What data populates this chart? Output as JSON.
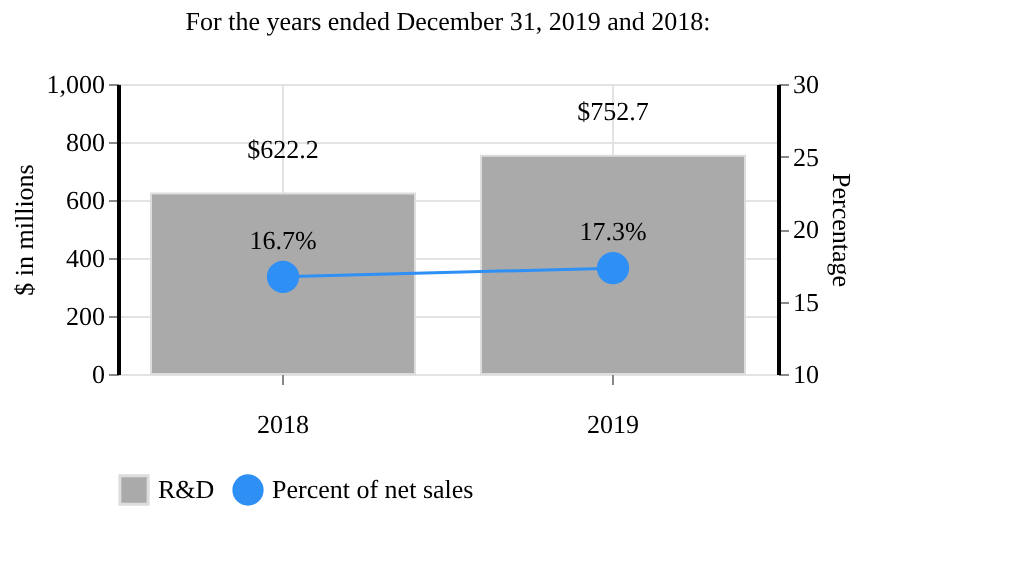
{
  "chart_data": {
    "type": "bar",
    "title": "For the years ended December 31, 2019 and 2018:",
    "categories": [
      "2018",
      "2019"
    ],
    "series": [
      {
        "name": "R&D",
        "color": "#aaaaaa",
        "values": [
          622.2,
          752.7
        ],
        "value_labels": [
          "$622.2",
          "$752.7"
        ]
      },
      {
        "name": "Percent of net sales",
        "type": "line",
        "axis": "y2",
        "color": "#2e8ff5",
        "marker": "circle",
        "values": [
          16.7,
          17.3
        ],
        "value_labels": [
          "16.7%",
          "17.3%"
        ]
      }
    ],
    "ylabel": "$ in millions",
    "y2label": "Percentage",
    "ylim": [
      0,
      1000
    ],
    "yticks": [
      {
        "value": 0,
        "label": "0"
      },
      {
        "value": 200,
        "label": "200"
      },
      {
        "value": 400,
        "label": "400"
      },
      {
        "value": 600,
        "label": "600"
      },
      {
        "value": 800,
        "label": "800"
      },
      {
        "value": 1000,
        "label": "1,000"
      }
    ],
    "y2lim": [
      10,
      30
    ],
    "y2ticks": [
      10,
      15,
      20,
      25,
      30
    ],
    "grid": true,
    "legend": "bottom"
  }
}
